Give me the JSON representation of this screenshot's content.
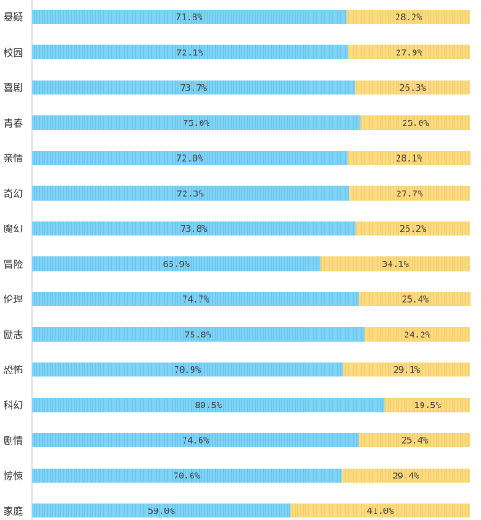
{
  "chart_data": {
    "type": "bar",
    "orientation": "horizontal",
    "stacked": true,
    "normalized": true,
    "categories": [
      "悬疑",
      "校园",
      "喜剧",
      "青春",
      "亲情",
      "奇幻",
      "魔幻",
      "冒险",
      "伦理",
      "励志",
      "恐怖",
      "科幻",
      "剧情",
      "惊悚",
      "家庭"
    ],
    "series": [
      {
        "values": [
          71.8,
          72.1,
          73.7,
          75.0,
          72.0,
          72.3,
          73.8,
          65.9,
          74.7,
          75.8,
          70.9,
          80.5,
          74.6,
          70.6,
          59.0
        ],
        "labels": [
          "71.8%",
          "72.1%",
          "73.7%",
          "75.0%",
          "72.0%",
          "72.3%",
          "73.8%",
          "65.9%",
          "74.7%",
          "75.8%",
          "70.9%",
          "80.5%",
          "74.6%",
          "70.6%",
          "59.0%"
        ],
        "color": "#7fd3f7"
      },
      {
        "values": [
          28.2,
          27.9,
          26.3,
          25.0,
          28.1,
          27.7,
          26.2,
          34.1,
          25.4,
          24.2,
          29.1,
          19.5,
          25.4,
          29.4,
          41.0
        ],
        "labels": [
          "28.2%",
          "27.9%",
          "26.3%",
          "25.0%",
          "28.1%",
          "27.7%",
          "26.2%",
          "34.1%",
          "25.4%",
          "24.2%",
          "29.1%",
          "19.5%",
          "25.4%",
          "29.4%",
          "41.0%"
        ],
        "color": "#fddb82"
      }
    ],
    "xlim": [
      0,
      100
    ],
    "grid": false,
    "legend": "none"
  }
}
